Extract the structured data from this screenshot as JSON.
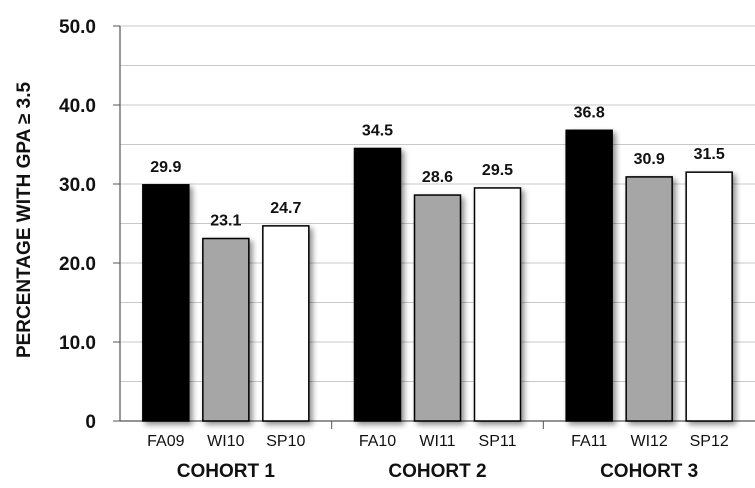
{
  "chart_data": {
    "type": "bar",
    "ylabel": "PERCENTAGE WITH GPA ≥ 3.5",
    "xlabel": "",
    "title": "",
    "ylim": [
      0,
      50
    ],
    "yticks": [
      "0",
      "10.0",
      "20.0",
      "30.0",
      "40.0",
      "50.0"
    ],
    "grid": true,
    "groups": [
      {
        "name": "COHORT 1",
        "bars": [
          {
            "category": "FA09",
            "value": 29.9,
            "label": "29.9",
            "color": "#000000"
          },
          {
            "category": "WI10",
            "value": 23.1,
            "label": "23.1",
            "color": "#a6a6a6"
          },
          {
            "category": "SP10",
            "value": 24.7,
            "label": "24.7",
            "color": "#ffffff"
          }
        ]
      },
      {
        "name": "COHORT 2",
        "bars": [
          {
            "category": "FA10",
            "value": 34.5,
            "label": "34.5",
            "color": "#000000"
          },
          {
            "category": "WI11",
            "value": 28.6,
            "label": "28.6",
            "color": "#a6a6a6"
          },
          {
            "category": "SP11",
            "value": 29.5,
            "label": "29.5",
            "color": "#ffffff"
          }
        ]
      },
      {
        "name": "COHORT 3",
        "bars": [
          {
            "category": "FA11",
            "value": 36.8,
            "label": "36.8",
            "color": "#000000"
          },
          {
            "category": "WI12",
            "value": 30.9,
            "label": "30.9",
            "color": "#a6a6a6"
          },
          {
            "category": "SP12",
            "value": 31.5,
            "label": "31.5",
            "color": "#ffffff"
          }
        ]
      }
    ]
  }
}
